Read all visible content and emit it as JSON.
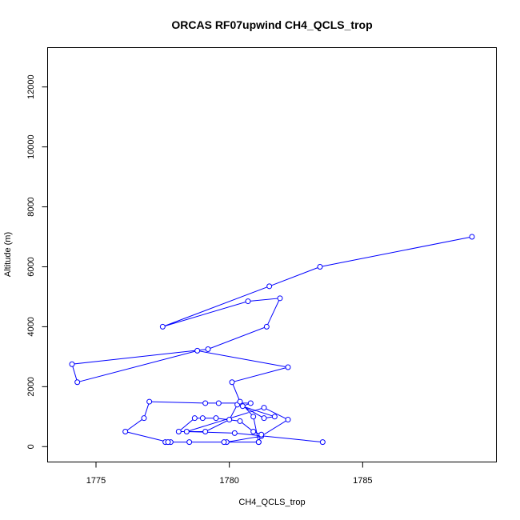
{
  "chart_data": {
    "type": "line",
    "title": "ORCAS RF07upwind CH4_QCLS_trop",
    "xlabel": "CH4_QCLS_trop",
    "ylabel": "Altitude (m)",
    "xlim": [
      1773.2,
      1790.0
    ],
    "ylim": [
      -500,
      13300
    ],
    "x_ticks": [
      1775,
      1780,
      1785
    ],
    "x_tick_labels": [
      "1775",
      "1780",
      "1785"
    ],
    "y_ticks": [
      0,
      2000,
      4000,
      6000,
      8000,
      10000,
      12000
    ],
    "y_tick_labels": [
      "0",
      "2000",
      "4000",
      "6000",
      "8000",
      "10000",
      "12000"
    ],
    "grid": false,
    "colors": {
      "series": "#0000ff",
      "axis": "#000000"
    },
    "series": [
      {
        "marker": "open-circle",
        "x": [
          1783.5,
          1780.2,
          1778.4,
          1781.3,
          1782.2,
          1781.2,
          1779.9,
          1777.6,
          1777.8,
          1778.5,
          1779.8,
          1781.1,
          1781.2,
          1780.9,
          1780.4,
          1779.5,
          1779.0,
          1778.7,
          1778.1,
          1779.1,
          1780.0,
          1780.3,
          1781.7,
          1781.3,
          1780.5,
          1780.8,
          1779.6,
          1779.1,
          1777.0,
          1776.8,
          1776.1,
          1777.7,
          1781.1,
          1780.9,
          1780.4,
          1780.1,
          1782.2,
          1778.8,
          1774.3,
          1774.1,
          1779.2,
          1781.4,
          1781.9,
          1780.7,
          1777.5,
          1781.5,
          1783.4,
          1789.1
        ],
        "y": [
          150,
          450,
          500,
          1300,
          900,
          350,
          150,
          150,
          150,
          150,
          150,
          150,
          400,
          500,
          850,
          950,
          950,
          950,
          500,
          500,
          900,
          1400,
          1000,
          950,
          1350,
          1450,
          1450,
          1450,
          1500,
          950,
          500,
          150,
          150,
          1000,
          1500,
          2150,
          2650,
          3200,
          2150,
          2750,
          3250,
          4000,
          4950,
          4850,
          4000,
          5350,
          6000,
          7000
        ]
      }
    ]
  }
}
